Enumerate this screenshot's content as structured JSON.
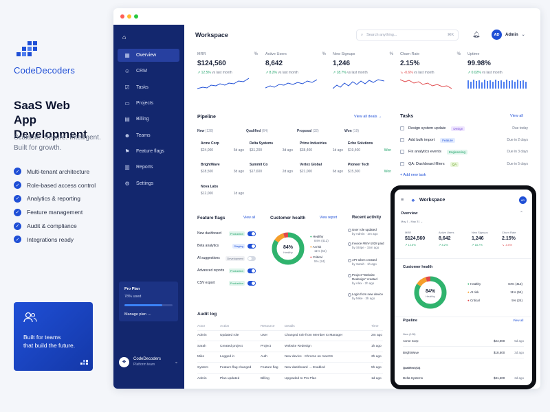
{
  "brand": {
    "name": "CodeDecoders",
    "hero_line1": "SaaS Web",
    "hero_line2": "App Development",
    "tag_line1": "Scalable. Secure. Intelligent.",
    "tag_line2": "Built for growth.",
    "features": [
      "Multi-tenant architecture",
      "Role-based access control",
      "Analytics & reporting",
      "Feature management",
      "Audit & compliance",
      "Integrations ready"
    ],
    "promo_line1": "Built for teams",
    "promo_line2": "that build the future."
  },
  "colors": {
    "primary": "#1f4fd6",
    "sidebar": "#13276e",
    "positive": "#20a36a",
    "warning": "#f59e2b",
    "negative": "#e0484b"
  },
  "sidebar": {
    "items": [
      {
        "label": "Overview",
        "icon": "grid-icon"
      },
      {
        "label": "CRM",
        "icon": "users-icon"
      },
      {
        "label": "Tasks",
        "icon": "checkbox-icon"
      },
      {
        "label": "Projects",
        "icon": "folder-icon"
      },
      {
        "label": "Billing",
        "icon": "card-icon"
      },
      {
        "label": "Teams",
        "icon": "team-icon"
      },
      {
        "label": "Feature flags",
        "icon": "flag-icon"
      },
      {
        "label": "Reports",
        "icon": "chart-icon"
      },
      {
        "label": "Settings",
        "icon": "gear-icon"
      }
    ],
    "plan_title": "Pro Plan",
    "plan_used": "78% used",
    "plan_fraction": 0.78,
    "manage": "Manage plan →",
    "team_name": "CodeDecoders",
    "team_sub": "Platform team"
  },
  "header": {
    "title": "Workspace",
    "search_placeholder": "Search anything...",
    "shortcut": "⌘K",
    "user_initials": "AD",
    "user_name": "Admin"
  },
  "kpis": [
    {
      "label": "MRR",
      "value": "$124,560",
      "delta": "↗ 12.5%",
      "note": "vs last month",
      "dir": "pos"
    },
    {
      "label": "Active Users",
      "value": "8,642",
      "delta": "↗ 8.2%",
      "note": "vs last month",
      "dir": "pos"
    },
    {
      "label": "New Signups",
      "value": "1,246",
      "delta": "↗ 18.7%",
      "note": "vs last month",
      "dir": "pos"
    },
    {
      "label": "Churn Rate",
      "value": "2.15%",
      "delta": "↘ -0.6%",
      "note": "vs last month",
      "dir": "neg"
    },
    {
      "label": "Uptime",
      "value": "99.98%",
      "delta": "↗ 0.02%",
      "note": "vs last month",
      "dir": "pos"
    }
  ],
  "pipeline": {
    "title": "Pipeline",
    "view_all": "View all deals →",
    "columns": [
      {
        "name": "New",
        "count": "(128)",
        "cards": [
          {
            "name": "Acme Corp",
            "amount": "$24,000",
            "age": "5d ago"
          },
          {
            "name": "BrightWave",
            "amount": "$18,500",
            "age": "3d ago"
          },
          {
            "name": "Nova Labs",
            "amount": "$12,000",
            "age": "1d ago"
          }
        ]
      },
      {
        "name": "Qualified",
        "count": "(64)",
        "cards": [
          {
            "name": "Delta Systems",
            "amount": "$31,200",
            "age": "3d ago"
          },
          {
            "name": "Summit Co",
            "amount": "$17,600",
            "age": "2d ago"
          }
        ]
      },
      {
        "name": "Proposal",
        "count": "(32)",
        "cards": [
          {
            "name": "Prime Industries",
            "amount": "$38,400",
            "age": "1d ago"
          },
          {
            "name": "Vertex Global",
            "amount": "$21,000",
            "age": "6d ago"
          }
        ]
      },
      {
        "name": "Won",
        "count": "(19)",
        "cards": [
          {
            "name": "Echo Solutions",
            "amount": "$19,400",
            "age": "Won"
          },
          {
            "name": "Pioneer Tech",
            "amount": "$15,300",
            "age": "Won"
          }
        ]
      }
    ]
  },
  "tasks": {
    "title": "Tasks",
    "view_all": "View all",
    "add": "+ Add new task",
    "items": [
      {
        "label": "Design system update",
        "tag": "Design",
        "tagbg": "#efe6ff",
        "tagfg": "#7a4fd6",
        "due": "Due today"
      },
      {
        "label": "Add bulk import",
        "tag": "Feature",
        "tagbg": "#e3ecff",
        "tagfg": "#1f4fd6",
        "due": "Due in 2 days"
      },
      {
        "label": "Fix analytics events",
        "tag": "Engineering",
        "tagbg": "#e0f5ec",
        "tagfg": "#20a36a",
        "due": "Due in 3 days"
      },
      {
        "label": "QA: Dashboard filters",
        "tag": "QA",
        "tagbg": "#e9f6d9",
        "tagfg": "#5e9a1a",
        "due": "Due in 5 days"
      }
    ]
  },
  "flags": {
    "title": "Feature flags",
    "view_all": "View all",
    "items": [
      {
        "label": "New dashboard",
        "env": "Production",
        "on": true
      },
      {
        "label": "Beta analytics",
        "env": "Staging",
        "on": true
      },
      {
        "label": "AI suggestions",
        "env": "Development",
        "on": false
      },
      {
        "label": "Advanced reports",
        "env": "Production",
        "on": true
      },
      {
        "label": "CSV export",
        "env": "Production",
        "on": true
      }
    ]
  },
  "health": {
    "title": "Customer health",
    "view": "View report",
    "center_value": "84%",
    "center_label": "Healthy",
    "segments": [
      {
        "name": "Healthy",
        "pct": "84% (412)",
        "value": 84,
        "color": "#2fb36d"
      },
      {
        "name": "At risk",
        "pct": "11% (54)",
        "value": 11,
        "color": "#f59e2b"
      },
      {
        "name": "Critical",
        "pct": "5% (24)",
        "value": 5,
        "color": "#e0484b"
      }
    ]
  },
  "activity": {
    "title": "Recent activity",
    "items": [
      {
        "t1": "User role updated",
        "t2": "by Admin · 2m ago"
      },
      {
        "t1": "Invoice #INV-1028 paid",
        "t2": "by Stripe · 15m ago"
      },
      {
        "t1": "API token created",
        "t2": "by Sarah · 1h ago"
      },
      {
        "t1": "Project \"Website Redesign\" created",
        "t2": "by Alex · 2h ago"
      },
      {
        "t1": "Login from new device",
        "t2": "by Mike · 3h ago"
      }
    ]
  },
  "audit": {
    "title": "Audit log",
    "headers": [
      "Actor",
      "Action",
      "Resource",
      "Details",
      "Time"
    ],
    "rows": [
      [
        "Admin",
        "Updated role",
        "User",
        "Changed role from Member to Manager",
        "2m ago"
      ],
      [
        "Sarah",
        "Created project",
        "Project",
        "Website Redesign",
        "1h ago"
      ],
      [
        "Mike",
        "Logged in",
        "Auth",
        "New device · Chrome on macOS",
        "3h ago"
      ],
      [
        "System",
        "Feature flag changed",
        "Feature flag",
        "New dashboard → Enabled",
        "5h ago"
      ],
      [
        "Admin",
        "Plan updated",
        "Billing",
        "Upgraded to Pro Plan",
        "1d ago"
      ]
    ]
  },
  "mobile": {
    "title": "Workspace",
    "initials": "AD",
    "overview": "Overview",
    "date_range": "May 1 - May 31",
    "kpis": [
      {
        "label": "MRR",
        "value": "$124,560",
        "delta": "↗ 12.5%"
      },
      {
        "label": "Active Users",
        "value": "8,642",
        "delta": "↗ 8.2%"
      },
      {
        "label": "New Signups",
        "value": "1,246",
        "delta": "↗ 18.7%"
      },
      {
        "label": "Churn Rate",
        "value": "2.15%",
        "delta": "↘ -0.6%"
      }
    ],
    "health_title": "Customer health",
    "pipeline_title": "Pipeline",
    "view_all": "View all",
    "new_label": "New (128)",
    "qualified_label": "Qualified (64)",
    "rows": [
      {
        "name": "Acme Corp",
        "amount": "$24,000",
        "age": "5d ago"
      },
      {
        "name": "BrightWave",
        "amount": "$18,500",
        "age": "3d ago"
      },
      {
        "name": "Delta Systems",
        "amount": "$31,200",
        "age": "3d ago"
      }
    ]
  }
}
